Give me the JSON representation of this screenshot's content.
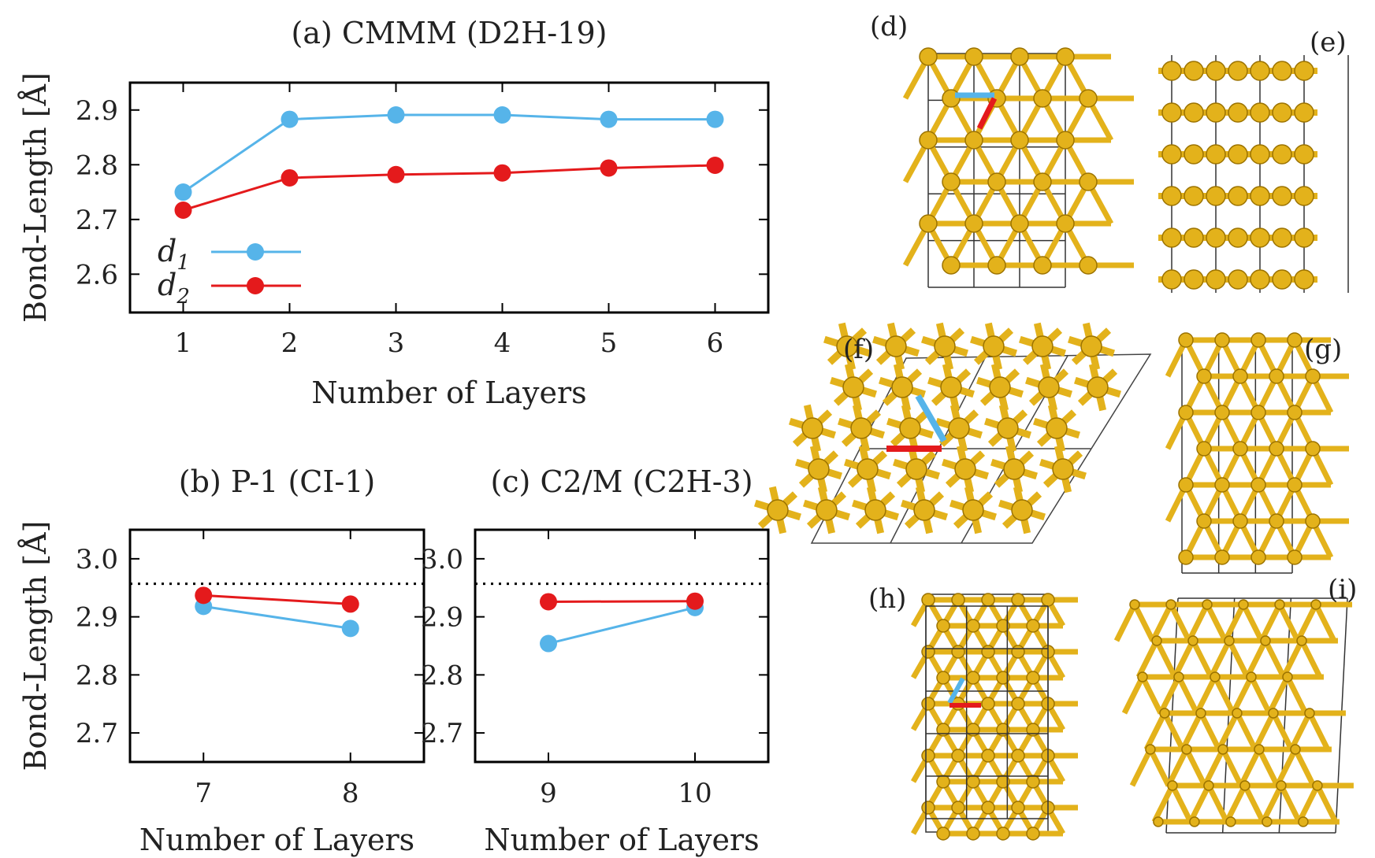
{
  "colors": {
    "d1": "#56b4e9",
    "d2": "#e41a1c",
    "gold": "#e3b21b",
    "goldDark": "#9c7300",
    "axis": "#000000"
  },
  "structure_panels": [
    "(d)",
    "(e)",
    "(f)",
    "(g)",
    "(h)",
    "(i)"
  ],
  "chart_data": [
    {
      "type": "line",
      "title": "(a) CMMM (D2H-19)",
      "xlabel": "Number of Layers",
      "ylabel": "Bond-Length [Å]",
      "categories": [
        1,
        2,
        3,
        4,
        5,
        6
      ],
      "xlim": [
        0.5,
        6.5
      ],
      "ylim": [
        2.53,
        2.95
      ],
      "yticks": [
        "2.6",
        "2.7",
        "2.8",
        "2.9"
      ],
      "ytick_values": [
        2.6,
        2.7,
        2.8,
        2.9
      ],
      "legend_position": "bottom-left",
      "series": [
        {
          "name": "d",
          "sub": "1",
          "key": "d1",
          "values": [
            2.75,
            2.883,
            2.891,
            2.891,
            2.883,
            2.883
          ]
        },
        {
          "name": "d",
          "sub": "2",
          "key": "d2",
          "values": [
            2.717,
            2.776,
            2.782,
            2.785,
            2.794,
            2.799
          ]
        }
      ]
    },
    {
      "type": "line",
      "title": "(b) P-1 (CI-1)",
      "xlabel": "Number of Layers",
      "ylabel": "Bond-Length [Å]",
      "categories": [
        7,
        8
      ],
      "xlim": [
        6.5,
        8.5
      ],
      "ylim": [
        2.65,
        3.05
      ],
      "yticks": [
        "2.7",
        "2.8",
        "2.9",
        "3.0"
      ],
      "ytick_values": [
        2.7,
        2.8,
        2.9,
        3.0
      ],
      "reference_line": 2.957,
      "series": [
        {
          "name": "d",
          "sub": "1",
          "key": "d1",
          "values": [
            2.918,
            2.88
          ]
        },
        {
          "name": "d",
          "sub": "2",
          "key": "d2",
          "values": [
            2.937,
            2.922
          ]
        }
      ]
    },
    {
      "type": "line",
      "title": "(c) C2/M (C2H-3)",
      "xlabel": "Number of Layers",
      "ylabel": "",
      "categories": [
        9,
        10
      ],
      "xlim": [
        8.5,
        10.5
      ],
      "ylim": [
        2.65,
        3.05
      ],
      "yticks": [
        "2.7",
        "2.8",
        "2.9",
        "3.0"
      ],
      "ytick_values": [
        2.7,
        2.8,
        2.9,
        3.0
      ],
      "reference_line": 2.957,
      "series": [
        {
          "name": "d",
          "sub": "1",
          "key": "d1",
          "values": [
            2.854,
            2.916
          ]
        },
        {
          "name": "d",
          "sub": "2",
          "key": "d2",
          "values": [
            2.926,
            2.927
          ]
        }
      ]
    }
  ]
}
